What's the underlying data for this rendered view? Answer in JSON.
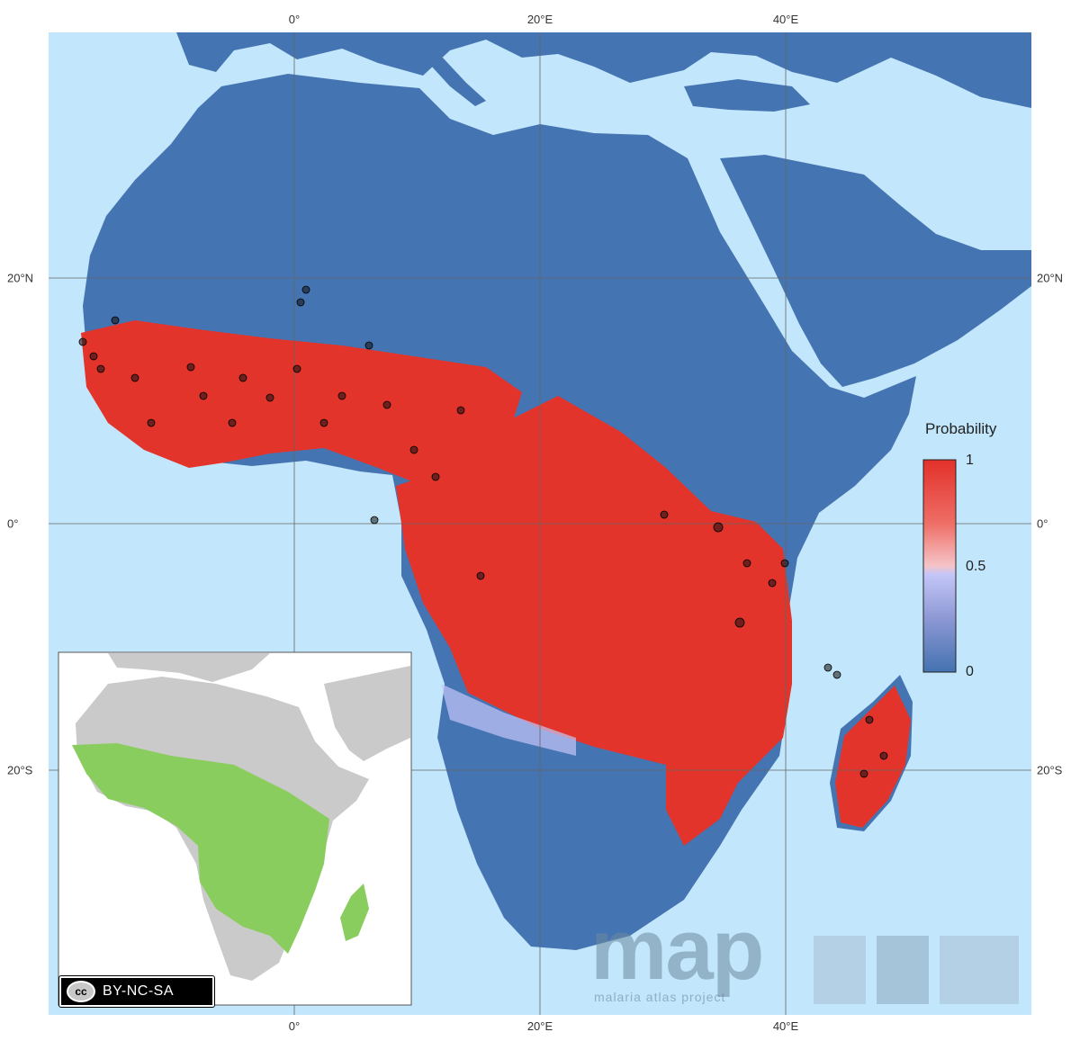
{
  "map": {
    "legend": {
      "title": "Probability",
      "labels": [
        "1",
        "0.5",
        "0"
      ],
      "colors": {
        "high": "#e2312a",
        "mid": "#c4c6f8",
        "low": "#4472b0"
      }
    },
    "axes": {
      "top": [
        "0°",
        "20°E",
        "40°E"
      ],
      "bottom": [
        "0°",
        "20°E",
        "40°E"
      ],
      "left": [
        "20°N",
        "0°",
        "20°S"
      ],
      "right": [
        "20°N",
        "0°",
        "20°S"
      ]
    },
    "colors": {
      "sea": "#c2e6fb",
      "land": "#4574b2",
      "range": "#e2342a",
      "inset_land": "#cacaca",
      "inset_range": "#8acd5f",
      "points": "#111111"
    },
    "license": {
      "badge_text": "BY-NC-SA",
      "cc_text": "cc"
    },
    "branding": {
      "logo_text": "map",
      "tagline": "malaria atlas project"
    }
  }
}
